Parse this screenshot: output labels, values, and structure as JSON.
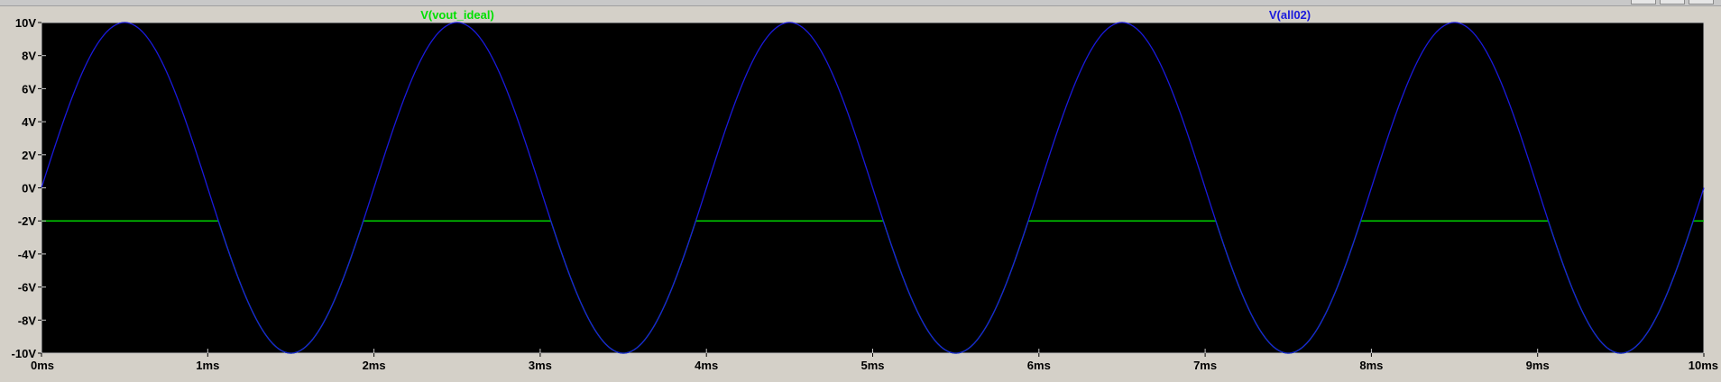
{
  "window": {
    "controls": [
      "minimize",
      "restore",
      "close"
    ]
  },
  "colors": {
    "plot_bg": "#000000",
    "frame": "#c8c8c8",
    "trace_green": "#00e000",
    "trace_blue": "#1a1adc",
    "window_bg": "#d4d0c8"
  },
  "chart_data": {
    "type": "line",
    "x_tick_labels": [
      "0ms",
      "1ms",
      "2ms",
      "3ms",
      "4ms",
      "5ms",
      "6ms",
      "7ms",
      "8ms",
      "9ms",
      "10ms"
    ],
    "y_tick_labels": [
      "10V",
      "8V",
      "6V",
      "4V",
      "2V",
      "0V",
      "-2V",
      "-4V",
      "-6V",
      "-8V",
      "-10V"
    ],
    "xlim": [
      0,
      10
    ],
    "ylim": [
      -10,
      10
    ],
    "x_unit": "ms",
    "y_unit": "V",
    "grid": false,
    "series": [
      {
        "name": "V(vout_ideal)",
        "color": "#00e000",
        "kind": "clamped_sine",
        "amplitude": 10,
        "frequency_khz": 0.5,
        "lower_clamp": -10,
        "upper_clamp": -2
      },
      {
        "name": "V(all02)",
        "color": "#1a1adc",
        "kind": "sine",
        "amplitude": 10,
        "frequency_khz": 0.5
      }
    ]
  }
}
